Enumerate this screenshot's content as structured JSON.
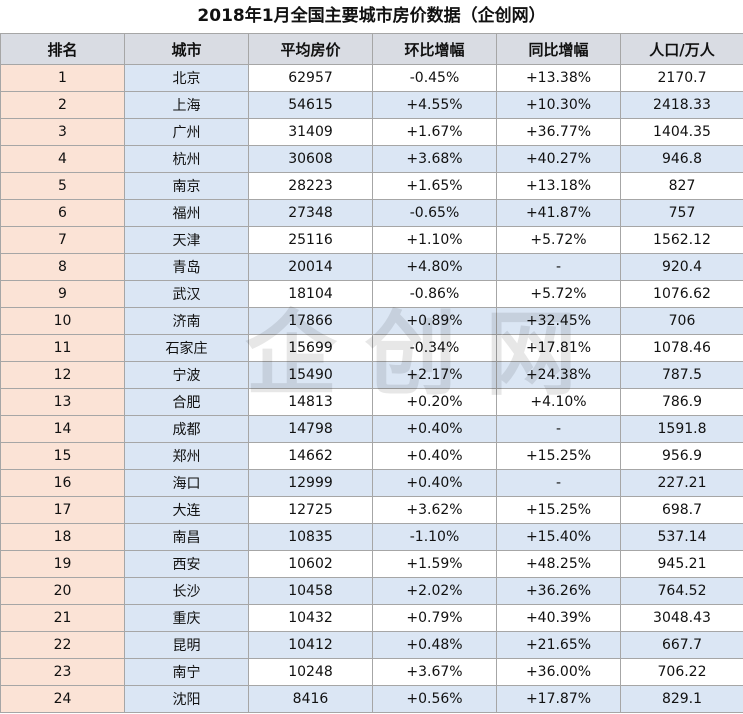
{
  "title": "2018年1月全国主要城市房价数据（企创网）",
  "watermark": "企创网",
  "colors": {
    "header_bg": "#d9dce3",
    "rank_bg": "#fbe3d6",
    "city_bg": "#dbe6f4",
    "alt_bg": "#dbe6f4",
    "border": "#a6a6a6"
  },
  "columns": [
    "排名",
    "城市",
    "平均房价",
    "环比增幅",
    "同比增幅",
    "人口/万人"
  ],
  "rows": [
    [
      "1",
      "北京",
      "62957",
      "-0.45%",
      "+13.38%",
      "2170.7"
    ],
    [
      "2",
      "上海",
      "54615",
      "+4.55%",
      "+10.30%",
      "2418.33"
    ],
    [
      "3",
      "广州",
      "31409",
      "+1.67%",
      "+36.77%",
      "1404.35"
    ],
    [
      "4",
      "杭州",
      "30608",
      "+3.68%",
      "+40.27%",
      "946.8"
    ],
    [
      "5",
      "南京",
      "28223",
      "+1.65%",
      "+13.18%",
      "827"
    ],
    [
      "6",
      "福州",
      "27348",
      "-0.65%",
      "+41.87%",
      "757"
    ],
    [
      "7",
      "天津",
      "25116",
      "+1.10%",
      "+5.72%",
      "1562.12"
    ],
    [
      "8",
      "青岛",
      "20014",
      "+4.80%",
      "-",
      "920.4"
    ],
    [
      "9",
      "武汉",
      "18104",
      "-0.86%",
      "+5.72%",
      "1076.62"
    ],
    [
      "10",
      "济南",
      "17866",
      "+0.89%",
      "+32.45%",
      "706"
    ],
    [
      "11",
      "石家庄",
      "15699",
      "-0.34%",
      "+17.81%",
      "1078.46"
    ],
    [
      "12",
      "宁波",
      "15490",
      "+2.17%",
      "+24.38%",
      "787.5"
    ],
    [
      "13",
      "合肥",
      "14813",
      "+0.20%",
      "+4.10%",
      "786.9"
    ],
    [
      "14",
      "成都",
      "14798",
      "+0.40%",
      "-",
      "1591.8"
    ],
    [
      "15",
      "郑州",
      "14662",
      "+0.40%",
      "+15.25%",
      "956.9"
    ],
    [
      "16",
      "海口",
      "12999",
      "+0.40%",
      "-",
      "227.21"
    ],
    [
      "17",
      "大连",
      "12725",
      "+3.62%",
      "+15.25%",
      "698.7"
    ],
    [
      "18",
      "南昌",
      "10835",
      "-1.10%",
      "+15.40%",
      "537.14"
    ],
    [
      "19",
      "西安",
      "10602",
      "+1.59%",
      "+48.25%",
      "945.21"
    ],
    [
      "20",
      "长沙",
      "10458",
      "+2.02%",
      "+36.26%",
      "764.52"
    ],
    [
      "21",
      "重庆",
      "10432",
      "+0.79%",
      "+40.39%",
      "3048.43"
    ],
    [
      "22",
      "昆明",
      "10412",
      "+0.48%",
      "+21.65%",
      "667.7"
    ],
    [
      "23",
      "南宁",
      "10248",
      "+3.67%",
      "+36.00%",
      "706.22"
    ],
    [
      "24",
      "沈阳",
      "8416",
      "+0.56%",
      "+17.87%",
      "829.1"
    ]
  ]
}
